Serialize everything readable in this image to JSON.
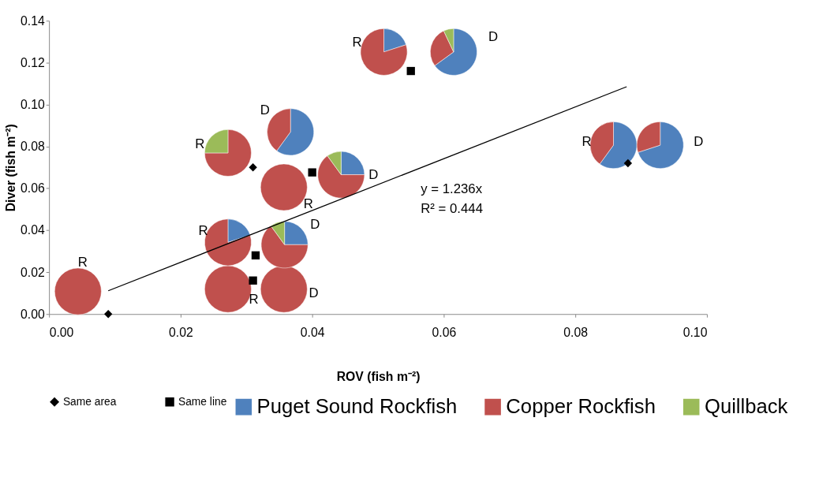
{
  "chart_data": {
    "type": "scatter",
    "xlabel": "ROV (fish m⁻²)",
    "ylabel": "Diver (fish m⁻²)",
    "xlim": [
      0,
      0.1
    ],
    "xticks": [
      {
        "value": 0,
        "label": "0.00"
      },
      {
        "value": 0.02,
        "label": "0.02"
      },
      {
        "value": 0.04,
        "label": "0.04"
      },
      {
        "value": 0.06,
        "label": "0.06"
      },
      {
        "value": 0.08,
        "label": "0.08"
      },
      {
        "value": 0.1,
        "label": "0.10"
      }
    ],
    "ylim": [
      0,
      0.14
    ],
    "yticks": [
      {
        "value": 0,
        "label": "0.00"
      },
      {
        "value": 0.02,
        "label": "0.02"
      },
      {
        "value": 0.04,
        "label": "0.04"
      },
      {
        "value": 0.06,
        "label": "0.06"
      },
      {
        "value": 0.08,
        "label": "0.08"
      },
      {
        "value": 0.1,
        "label": "0.10"
      },
      {
        "value": 0.12,
        "label": "0.12"
      },
      {
        "value": 0.14,
        "label": "0.14"
      }
    ],
    "grid": false,
    "legend": "bottom",
    "series": [
      {
        "name": "Same area",
        "type": "scatter",
        "marker": "diamond",
        "color": "#000000",
        "x": [
          0.009,
          0.031,
          0.088
        ],
        "values": [
          0.0,
          0.07,
          0.072
        ]
      },
      {
        "name": "Same line",
        "type": "scatter",
        "marker": "square",
        "color": "#000000",
        "x": [
          0.055,
          0.04,
          0.0314,
          0.031
        ],
        "values": [
          0.116,
          0.0676,
          0.028,
          0.016
        ]
      },
      {
        "type": "line",
        "color": "#000000",
        "x": [
          0.009,
          0.0878
        ],
        "values": [
          0.0111,
          0.1085
        ]
      }
    ],
    "annotations": [
      "y = 1.236x",
      "R² = 0.444",
      "R",
      "R",
      "D",
      "R",
      "D",
      "R",
      "D",
      "R",
      "D",
      "R",
      "D",
      "R",
      "D",
      "Puget Sound Rockfish",
      "Copper Rockfish",
      "Quillback"
    ]
  }
}
